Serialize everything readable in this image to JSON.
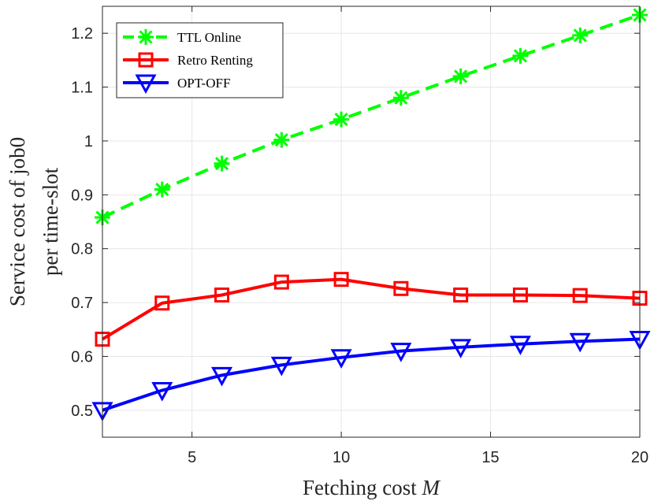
{
  "chart_data": {
    "type": "line",
    "title": "",
    "xlabel_text": "Fetching cost ",
    "xlabel_var": "M",
    "ylabel_line1": "Service cost of job0",
    "ylabel_line2": "per time-slot",
    "xlim": [
      2,
      20
    ],
    "ylim": [
      0.45,
      1.25
    ],
    "xticks": [
      5,
      10,
      15,
      20
    ],
    "xtick_labels": [
      "5",
      "10",
      "15",
      "20"
    ],
    "yticks": [
      0.5,
      0.6,
      0.7,
      0.8,
      0.9,
      1.0,
      1.1,
      1.2
    ],
    "ytick_labels": [
      "0.5",
      "0.6",
      "0.7",
      "0.8",
      "0.9",
      "1",
      "1.1",
      "1.2"
    ],
    "grid": true,
    "legend_position": "top-left",
    "x": [
      2,
      4,
      6,
      8,
      10,
      12,
      14,
      16,
      18,
      20
    ],
    "series": [
      {
        "name": "TTL Online",
        "color": "#00ff00",
        "marker": "asterisk",
        "line": "dashed",
        "values": [
          0.858,
          0.91,
          0.958,
          1.002,
          1.04,
          1.08,
          1.12,
          1.158,
          1.196,
          1.234
        ]
      },
      {
        "name": "Retro Renting",
        "color": "#ff0000",
        "marker": "square",
        "line": "solid",
        "values": [
          0.632,
          0.699,
          0.714,
          0.738,
          0.743,
          0.726,
          0.714,
          0.714,
          0.713,
          0.708
        ]
      },
      {
        "name": "OPT-OFF",
        "color": "#0000ff",
        "marker": "triangle-down",
        "line": "solid",
        "values": [
          0.5,
          0.537,
          0.565,
          0.584,
          0.598,
          0.61,
          0.617,
          0.623,
          0.628,
          0.632
        ]
      }
    ]
  }
}
